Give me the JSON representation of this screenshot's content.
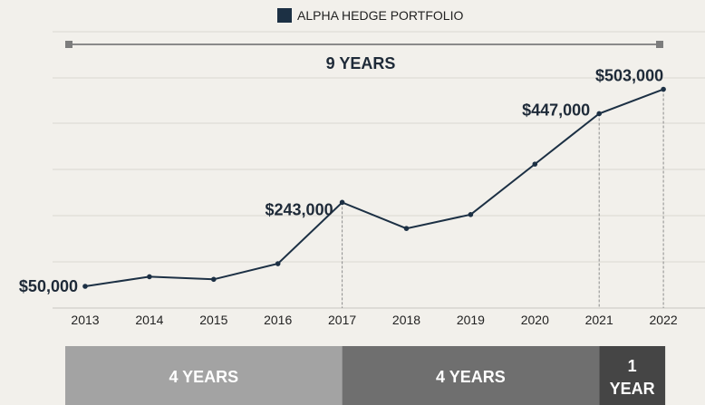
{
  "chart_data": {
    "type": "line",
    "series": [
      {
        "name": "ALPHA HEDGE PORTFOLIO",
        "color": "#1c3044",
        "values": [
          50000,
          72000,
          66000,
          102000,
          243000,
          183000,
          215000,
          331000,
          447000,
          503000
        ]
      }
    ],
    "x": [
      "2013",
      "2014",
      "2015",
      "2016",
      "2017",
      "2018",
      "2019",
      "2020",
      "2021",
      "2022"
    ],
    "ylim": [
      0,
      550000
    ],
    "grid": true,
    "legend_position": "top-center",
    "annotations": [
      {
        "x": "2013",
        "text": "$50,000"
      },
      {
        "x": "2017",
        "text": "$243,000"
      },
      {
        "x": "2021",
        "text": "$447,000"
      },
      {
        "x": "2022",
        "text": "$503,000"
      }
    ],
    "span_label": "9 YEARS",
    "period_bars": [
      {
        "text": "4 YEARS",
        "from": "2013",
        "to": "2017",
        "color": "#a3a3a3"
      },
      {
        "text": "4 YEARS",
        "from": "2017",
        "to": "2021",
        "color": "#6f6f6f"
      },
      {
        "text": "1 YEAR",
        "from": "2021",
        "to": "2022",
        "color": "#454545"
      }
    ]
  }
}
